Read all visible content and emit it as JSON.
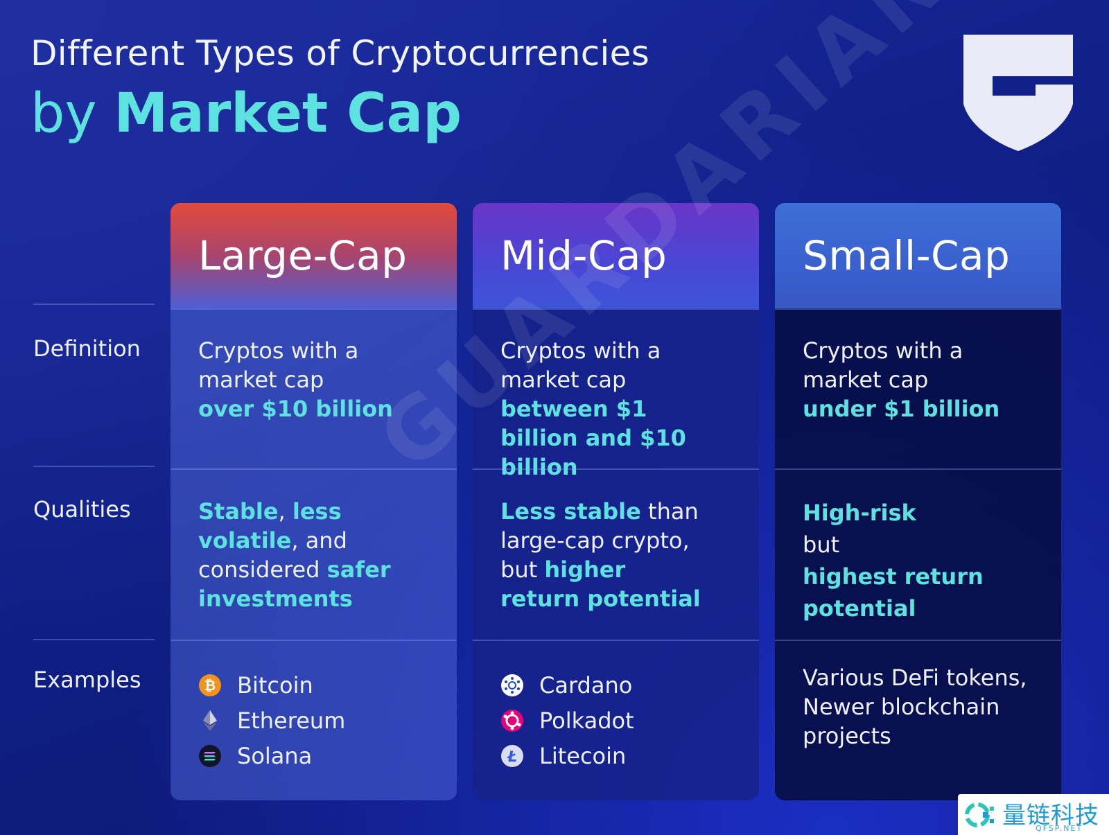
{
  "header": {
    "line1": "Different Types of Cryptocurrencies",
    "line2_prefix": "by ",
    "line2_bold": "Market Cap"
  },
  "logo": {
    "icon": "guardarian-shield-icon"
  },
  "rows": {
    "definition": "Definition",
    "qualities": "Qualities",
    "examples": "Examples"
  },
  "columns": {
    "large": {
      "title": "Large-Cap",
      "accent": "#e24a3c",
      "definition": {
        "plain": "Cryptos with a market cap",
        "highlight": "over $10 billion"
      },
      "qualities": {
        "hl1": "Stable",
        "t1": ", ",
        "hl2": "less volatile",
        "t2": ", and considered ",
        "hl3": "safer investments"
      },
      "examples": [
        {
          "name": "Bitcoin",
          "icon": "bitcoin-icon"
        },
        {
          "name": "Ethereum",
          "icon": "ethereum-icon"
        },
        {
          "name": "Solana",
          "icon": "solana-icon"
        }
      ]
    },
    "mid": {
      "title": "Mid-Cap",
      "accent": "#6a36c8",
      "definition": {
        "plain": "Cryptos with a market cap",
        "highlight": "between $1 billion and $10 billion"
      },
      "qualities": {
        "hl1": "Less stable",
        "t1": " than large-cap crypto, but ",
        "hl2": "higher return potential"
      },
      "examples": [
        {
          "name": "Cardano",
          "icon": "cardano-icon"
        },
        {
          "name": "Polkadot",
          "icon": "polkadot-icon"
        },
        {
          "name": "Litecoin",
          "icon": "litecoin-icon"
        }
      ]
    },
    "small": {
      "title": "Small-Cap",
      "accent": "#3d6fd6",
      "definition": {
        "plain": "Cryptos with a market cap",
        "highlight": "under $1 billion"
      },
      "qualities": {
        "hl1": "High-risk",
        "t1": "but",
        "hl2": "highest return potential"
      },
      "examples_lines": [
        "Various DeFi tokens,",
        "Newer blockchain",
        "projects"
      ]
    }
  },
  "watermark": "GUARDARIAN",
  "footer_badge": {
    "text": "量链科技",
    "sub": "QFSP.NET"
  },
  "colors": {
    "highlight": "#5de2df"
  }
}
